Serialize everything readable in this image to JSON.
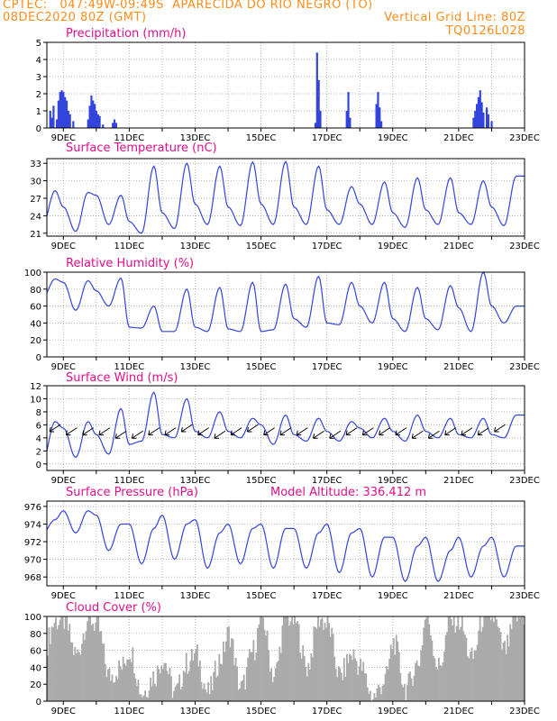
{
  "header": {
    "line1": "CPTEC:   047:49W-09:49S  APARECIDA DO RIO NEGRO (TO)",
    "date": "08DEC2020 80Z (GMT)",
    "grid_note": "Vertical Grid Line: 80Z",
    "code": "TQ0126L028"
  },
  "model_altitude": "Model Altitude: 336.412 m",
  "x_ticks": [
    "9DEC",
    "11DEC",
    "13DEC",
    "15DEC",
    "17DEC",
    "19DEC",
    "21DEC",
    "23DEC"
  ],
  "colors": {
    "header": "#ff8c1a",
    "title": "#e0108a",
    "series": "#3344dd",
    "cloud": "#aaaaaa"
  },
  "chart_data": [
    {
      "type": "bar",
      "title": "Precipitation (mm/h)",
      "ylim": [
        0,
        5
      ],
      "yticks": [
        "0",
        "1",
        "2",
        "3",
        "4",
        "5"
      ],
      "x_range_days": [
        8.5,
        23.0
      ],
      "events": [
        [
          8.6,
          1.0
        ],
        [
          8.65,
          0.6
        ],
        [
          8.7,
          1.3
        ],
        [
          8.8,
          0.5
        ],
        [
          8.85,
          1.6
        ],
        [
          8.9,
          2.1
        ],
        [
          8.95,
          2.2
        ],
        [
          9.0,
          2.1
        ],
        [
          9.05,
          1.8
        ],
        [
          9.1,
          1.6
        ],
        [
          9.15,
          1.0
        ],
        [
          9.2,
          0.8
        ],
        [
          9.3,
          0.4
        ],
        [
          9.75,
          0.5
        ],
        [
          9.8,
          1.3
        ],
        [
          9.85,
          1.9
        ],
        [
          9.9,
          1.6
        ],
        [
          9.95,
          1.4
        ],
        [
          10.0,
          1.0
        ],
        [
          10.05,
          0.8
        ],
        [
          10.1,
          0.7
        ],
        [
          10.2,
          0.2
        ],
        [
          10.5,
          0.3
        ],
        [
          10.55,
          0.5
        ],
        [
          10.6,
          0.3
        ],
        [
          16.65,
          0.3
        ],
        [
          16.7,
          4.4
        ],
        [
          16.75,
          2.8
        ],
        [
          16.8,
          1.0
        ],
        [
          17.6,
          1.0
        ],
        [
          17.65,
          2.1
        ],
        [
          17.7,
          0.6
        ],
        [
          18.5,
          1.4
        ],
        [
          18.55,
          2.1
        ],
        [
          18.6,
          1.2
        ],
        [
          18.65,
          0.4
        ],
        [
          21.45,
          0.6
        ],
        [
          21.5,
          1.0
        ],
        [
          21.55,
          1.4
        ],
        [
          21.6,
          1.8
        ],
        [
          21.65,
          2.2
        ],
        [
          21.7,
          1.5
        ],
        [
          21.75,
          0.9
        ],
        [
          21.85,
          1.2
        ],
        [
          21.9,
          0.8
        ],
        [
          22.0,
          0.4
        ]
      ]
    },
    {
      "type": "line",
      "title": "Surface Temperature (nC)",
      "ylim": [
        20.5,
        33.8
      ],
      "yticks": [
        "21",
        "24",
        "27",
        "30",
        "33"
      ],
      "daily": [
        [
          24.5,
          22.5,
          28.3
        ],
        [
          25.5,
          21.3,
          28.0
        ],
        [
          27.5,
          22.5,
          27.5
        ],
        [
          23.0,
          21.0,
          32.5
        ],
        [
          24.5,
          21.8,
          33.0
        ],
        [
          26.0,
          22.5,
          32.5
        ],
        [
          25.5,
          22.3,
          33.2
        ],
        [
          26.0,
          22.5,
          33.3
        ],
        [
          25.5,
          22.5,
          32.5
        ],
        [
          25.0,
          22.5,
          29.0
        ],
        [
          26.0,
          22.5,
          29.8
        ],
        [
          24.5,
          22.0,
          30.5
        ],
        [
          25.0,
          22.5,
          30.5
        ],
        [
          24.5,
          22.5,
          30.0
        ],
        [
          25.5,
          22.3,
          30.8
        ]
      ]
    },
    {
      "type": "line",
      "title": "Relative Humidity (%)",
      "ylim": [
        0,
        100
      ],
      "yticks": [
        "0",
        "20",
        "40",
        "60",
        "80",
        "100"
      ],
      "daily": [
        [
          72,
          70,
          92
        ],
        [
          88,
          55,
          90
        ],
        [
          78,
          60,
          93
        ],
        [
          35,
          34,
          60
        ],
        [
          30,
          30,
          80
        ],
        [
          35,
          30,
          82
        ],
        [
          33,
          30,
          88
        ],
        [
          30,
          32,
          86
        ],
        [
          45,
          35,
          95
        ],
        [
          40,
          38,
          88
        ],
        [
          60,
          40,
          88
        ],
        [
          45,
          30,
          82
        ],
        [
          45,
          32,
          84
        ],
        [
          58,
          30,
          100
        ],
        [
          60,
          40,
          60
        ]
      ]
    },
    {
      "type": "line",
      "title": "Surface Wind (m/s)",
      "ylim": [
        -1,
        12
      ],
      "yticks": [
        "0",
        "2",
        "4",
        "6",
        "8",
        "10",
        "12"
      ],
      "speed_daily": [
        [
          1.5,
          0.5,
          6.5
        ],
        [
          5.5,
          1.0,
          6.5
        ],
        [
          4.5,
          1.5,
          8.5
        ],
        [
          3.0,
          3.5,
          11.0
        ],
        [
          4.5,
          4.0,
          10.0
        ],
        [
          5.0,
          4.0,
          8.0
        ],
        [
          5.0,
          4.0,
          7.0
        ],
        [
          6.0,
          3.0,
          7.5
        ],
        [
          4.5,
          3.5,
          7.0
        ],
        [
          5.0,
          3.5,
          6.5
        ],
        [
          5.5,
          4.0,
          7.0
        ],
        [
          5.0,
          3.5,
          7.5
        ],
        [
          5.0,
          4.0,
          7.0
        ],
        [
          4.5,
          4.0,
          7.0
        ],
        [
          4.5,
          4.0,
          7.5
        ]
      ],
      "barb_values": [
        5.5,
        5.0,
        5.0,
        5.0,
        4.5,
        4.5,
        5.0,
        5.0,
        5.5,
        5.0,
        4.5,
        5.0,
        5.5,
        5.0,
        5.0,
        5.0,
        4.5,
        4.5,
        5.0,
        5.0,
        5.0,
        5.0,
        4.5,
        4.5,
        5.0,
        5.0,
        5.0,
        5.5
      ]
    },
    {
      "type": "line",
      "title": "Surface Pressure (hPa)",
      "ylim": [
        967,
        976.6
      ],
      "yticks": [
        "968",
        "970",
        "972",
        "974",
        "976"
      ],
      "daily": [
        [
          975.0,
          973.0,
          974.5
        ],
        [
          975.5,
          973.0,
          975.5
        ],
        [
          975.0,
          971.0,
          974.0
        ],
        [
          974.0,
          969.5,
          973.5
        ],
        [
          975.0,
          970.0,
          974.0
        ],
        [
          974.5,
          969.0,
          973.0
        ],
        [
          974.0,
          969.5,
          973.5
        ],
        [
          974.0,
          969.0,
          973.5
        ],
        [
          973.5,
          969.0,
          973.0
        ],
        [
          974.0,
          968.5,
          973.0
        ],
        [
          973.5,
          968.0,
          972.5
        ],
        [
          972.5,
          967.5,
          971.5
        ],
        [
          972.5,
          967.5,
          971.0
        ],
        [
          972.5,
          968.0,
          971.5
        ],
        [
          972.5,
          968.0,
          971.5
        ]
      ]
    },
    {
      "type": "area",
      "title": "Cloud Cover (%)",
      "ylim": [
        0,
        100
      ],
      "yticks": [
        "0",
        "20",
        "40",
        "60",
        "80",
        "100"
      ],
      "daily": [
        [
          98,
          60,
          95
        ],
        [
          95,
          55,
          98
        ],
        [
          90,
          30,
          40
        ],
        [
          60,
          10,
          30
        ],
        [
          50,
          10,
          45
        ],
        [
          55,
          10,
          50
        ],
        [
          80,
          15,
          60
        ],
        [
          100,
          30,
          100
        ],
        [
          95,
          40,
          98
        ],
        [
          90,
          30,
          55
        ],
        [
          40,
          5,
          25
        ],
        [
          70,
          15,
          45
        ],
        [
          100,
          40,
          95
        ],
        [
          95,
          50,
          100
        ],
        [
          100,
          60,
          100
        ]
      ]
    }
  ]
}
